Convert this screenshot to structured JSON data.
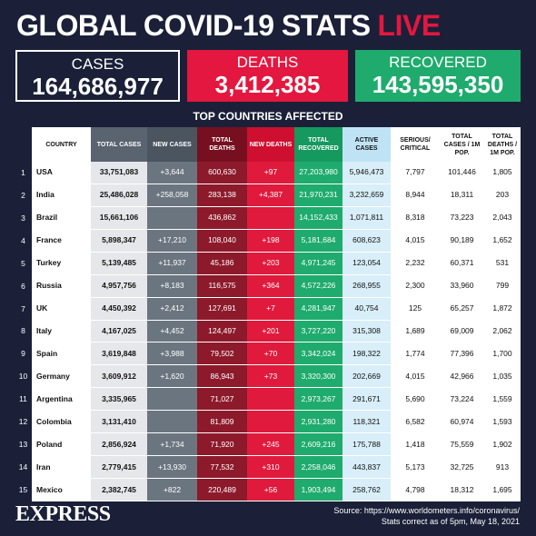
{
  "header": {
    "title": "GLOBAL COVID-19 STATS",
    "live": "LIVE"
  },
  "totals": [
    {
      "label": "CASES",
      "value": "164,686,977"
    },
    {
      "label": "DEATHS",
      "value": "3,412,385"
    },
    {
      "label": "RECOVERED",
      "value": "143,595,350"
    }
  ],
  "table": {
    "title": "TOP COUNTRIES AFFECTED",
    "columns": [
      "COUNTRY",
      "TOTAL CASES",
      "NEW CASES",
      "TOTAL DEATHS",
      "NEW DEATHS",
      "TOTAL RECOVERED",
      "ACTIVE CASES",
      "SERIOUS/ CRITICAL",
      "TOTAL CASES / 1M POP.",
      "TOTAL DEATHS / 1M POP."
    ],
    "rows": [
      [
        "1",
        "USA",
        "33,751,083",
        "+3,644",
        "600,630",
        "+97",
        "27,203,980",
        "5,946,473",
        "7,797",
        "101,446",
        "1,805"
      ],
      [
        "2",
        "India",
        "25,486,028",
        "+258,058",
        "283,138",
        "+4,387",
        "21,970,231",
        "3,232,659",
        "8,944",
        "18,311",
        "203"
      ],
      [
        "3",
        "Brazil",
        "15,661,106",
        null,
        "436,862",
        null,
        "14,152,433",
        "1,071,811",
        "8,318",
        "73,223",
        "2,043"
      ],
      [
        "4",
        "France",
        "5,898,347",
        "+17,210",
        "108,040",
        "+198",
        "5,181,684",
        "608,623",
        "4,015",
        "90,189",
        "1,652"
      ],
      [
        "5",
        "Turkey",
        "5,139,485",
        "+11,937",
        "45,186",
        "+203",
        "4,971,245",
        "123,054",
        "2,232",
        "60,371",
        "531"
      ],
      [
        "6",
        "Russia",
        "4,957,756",
        "+8,183",
        "116,575",
        "+364",
        "4,572,226",
        "268,955",
        "2,300",
        "33,960",
        "799"
      ],
      [
        "7",
        "UK",
        "4,450,392",
        "+2,412",
        "127,691",
        "+7",
        "4,281,947",
        "40,754",
        "125",
        "65,257",
        "1,872"
      ],
      [
        "8",
        "Italy",
        "4,167,025",
        "+4,452",
        "124,497",
        "+201",
        "3,727,220",
        "315,308",
        "1,689",
        "69,009",
        "2,062"
      ],
      [
        "9",
        "Spain",
        "3,619,848",
        "+3,988",
        "79,502",
        "+70",
        "3,342,024",
        "198,322",
        "1,774",
        "77,396",
        "1,700"
      ],
      [
        "10",
        "Germany",
        "3,609,912",
        "+1,620",
        "86,943",
        "+73",
        "3,320,300",
        "202,669",
        "4,015",
        "42,966",
        "1,035"
      ],
      [
        "11",
        "Argentina",
        "3,335,965",
        null,
        "71,027",
        null,
        "2,973,267",
        "291,671",
        "5,690",
        "73,224",
        "1,559"
      ],
      [
        "12",
        "Colombia",
        "3,131,410",
        null,
        "81,809",
        null,
        "2,931,280",
        "118,321",
        "6,582",
        "60,974",
        "1,593"
      ],
      [
        "13",
        "Poland",
        "2,856,924",
        "+1,734",
        "71,920",
        "+245",
        "2,609,216",
        "175,788",
        "1,418",
        "75,559",
        "1,902"
      ],
      [
        "14",
        "Iran",
        "2,779,415",
        "+13,930",
        "77,532",
        "+310",
        "2,258,046",
        "443,837",
        "5,173",
        "32,725",
        "913"
      ],
      [
        "15",
        "Mexico",
        "2,382,745",
        "+822",
        "220,489",
        "+56",
        "1,903,494",
        "258,762",
        "4,798",
        "18,312",
        "1,695"
      ]
    ]
  },
  "footer": {
    "logo": "EXPRESS",
    "source": "Source: https://www.worldometers.info/coronavirus/",
    "note": "Stats correct as of 5pm, May 18, 2021"
  }
}
